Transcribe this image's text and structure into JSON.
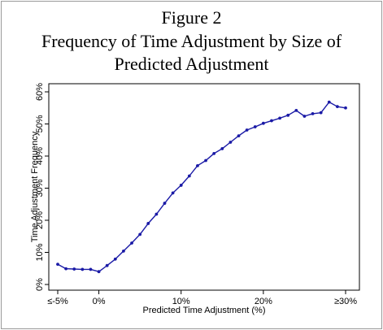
{
  "figure": {
    "label": "Figure 2",
    "title_line1": "Frequency of Time Adjustment by Size of",
    "title_line2": "Predicted Adjustment"
  },
  "chart_data": {
    "type": "line",
    "title": "Frequency of Time Adjustment by Size of Predicted Adjustment",
    "xlabel": "Predicted Time Adjustment (%)",
    "ylabel": "Time Adjustment Frequency",
    "xlim": [
      -5,
      30
    ],
    "ylim": [
      0,
      60
    ],
    "x_ticks": [
      -5,
      0,
      10,
      20,
      30
    ],
    "x_tick_labels": [
      "≤-5%",
      "0%",
      "10%",
      "20%",
      "30%"
    ],
    "y_ticks": [
      0,
      10,
      20,
      30,
      40,
      50,
      60
    ],
    "y_tick_labels": [
      "0%",
      "10%",
      "20%",
      "30%",
      "40%",
      "50%",
      "60%"
    ],
    "x_first_label": "≤-5%",
    "x_last_label": "≥30%",
    "grid": false,
    "line_color": "#1a1aa6",
    "series": [
      {
        "x": [
          -5,
          -4,
          -3,
          -2,
          -1,
          0,
          1,
          2,
          3,
          4,
          5,
          6,
          7,
          8,
          9,
          10,
          11,
          12,
          13,
          14,
          15,
          16,
          17,
          18,
          19,
          20,
          21,
          22,
          23,
          24,
          25,
          26,
          27,
          28,
          29,
          30
        ],
        "values": [
          6.3,
          4.9,
          4.8,
          4.7,
          4.7,
          4.0,
          5.9,
          7.9,
          10.4,
          12.9,
          15.6,
          19.0,
          21.9,
          25.3,
          28.5,
          30.9,
          33.8,
          37.0,
          38.6,
          40.8,
          42.3,
          44.3,
          46.3,
          48.1,
          49.1,
          50.2,
          51.0,
          51.8,
          52.7,
          54.2,
          52.4,
          53.2,
          53.5,
          56.8,
          55.4,
          55.0
        ]
      }
    ]
  }
}
